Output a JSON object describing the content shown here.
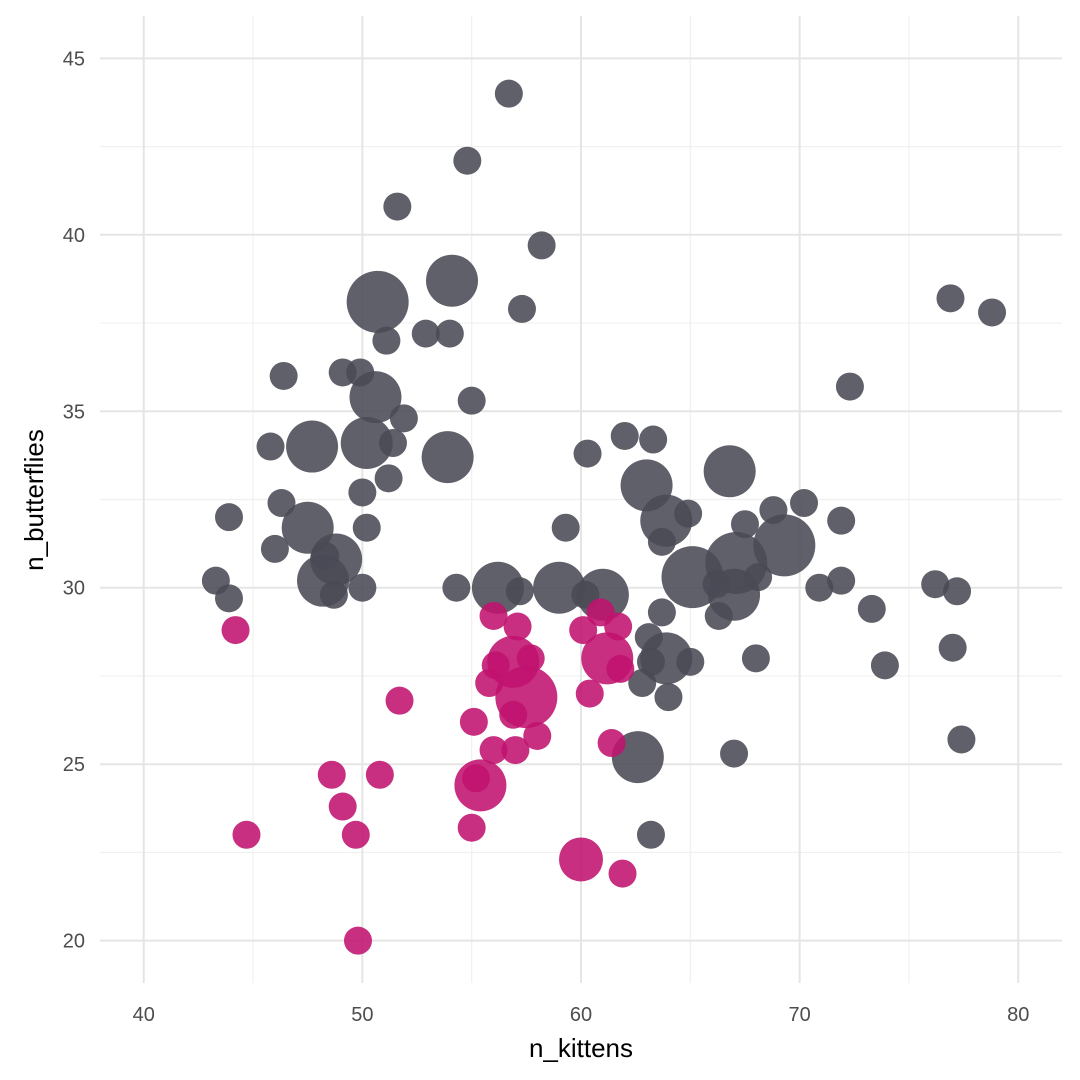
{
  "chart_data": {
    "type": "scatter",
    "title": "",
    "xlabel": "n_kittens",
    "ylabel": "n_butterflies",
    "xlim": [
      38,
      82
    ],
    "ylim": [
      18.8,
      46.2
    ],
    "x_ticks": [
      40,
      50,
      60,
      70,
      80
    ],
    "y_ticks": [
      20,
      25,
      30,
      35,
      40,
      45
    ],
    "grid": true,
    "legend": "none",
    "colors": {
      "gray": "#4a4a55",
      "magenta": "#c0126e"
    },
    "size_note": "point size encodes a third variable (relative units)",
    "series": [
      {
        "group": "gray",
        "points": [
          {
            "x": 56.7,
            "y": 44.0,
            "s": 1
          },
          {
            "x": 54.8,
            "y": 42.1,
            "s": 1
          },
          {
            "x": 51.6,
            "y": 40.8,
            "s": 1
          },
          {
            "x": 58.2,
            "y": 39.7,
            "s": 1
          },
          {
            "x": 54.1,
            "y": 38.7,
            "s": 3
          },
          {
            "x": 50.7,
            "y": 38.1,
            "s": 4
          },
          {
            "x": 57.3,
            "y": 37.9,
            "s": 1
          },
          {
            "x": 52.9,
            "y": 37.2,
            "s": 1
          },
          {
            "x": 54.0,
            "y": 37.2,
            "s": 1
          },
          {
            "x": 51.1,
            "y": 37.0,
            "s": 1
          },
          {
            "x": 49.1,
            "y": 36.1,
            "s": 1
          },
          {
            "x": 49.9,
            "y": 36.1,
            "s": 1
          },
          {
            "x": 46.4,
            "y": 36.0,
            "s": 1
          },
          {
            "x": 50.6,
            "y": 35.4,
            "s": 3
          },
          {
            "x": 55.0,
            "y": 35.3,
            "s": 1
          },
          {
            "x": 51.9,
            "y": 34.8,
            "s": 1
          },
          {
            "x": 45.8,
            "y": 34.0,
            "s": 1
          },
          {
            "x": 47.7,
            "y": 34.0,
            "s": 3
          },
          {
            "x": 50.2,
            "y": 34.1,
            "s": 3
          },
          {
            "x": 51.4,
            "y": 34.1,
            "s": 1
          },
          {
            "x": 53.9,
            "y": 33.7,
            "s": 3
          },
          {
            "x": 51.2,
            "y": 33.1,
            "s": 1
          },
          {
            "x": 50.0,
            "y": 32.7,
            "s": 1
          },
          {
            "x": 46.3,
            "y": 32.4,
            "s": 1
          },
          {
            "x": 43.9,
            "y": 32.0,
            "s": 1
          },
          {
            "x": 47.5,
            "y": 31.7,
            "s": 3
          },
          {
            "x": 50.2,
            "y": 31.7,
            "s": 1
          },
          {
            "x": 46.0,
            "y": 31.1,
            "s": 1
          },
          {
            "x": 48.8,
            "y": 30.8,
            "s": 3
          },
          {
            "x": 48.3,
            "y": 30.9,
            "s": 1
          },
          {
            "x": 48.2,
            "y": 30.2,
            "s": 3
          },
          {
            "x": 43.3,
            "y": 30.2,
            "s": 1
          },
          {
            "x": 50.0,
            "y": 30.0,
            "s": 1
          },
          {
            "x": 43.9,
            "y": 29.7,
            "s": 1
          },
          {
            "x": 48.7,
            "y": 29.8,
            "s": 1
          },
          {
            "x": 54.3,
            "y": 30.0,
            "s": 1
          },
          {
            "x": 56.2,
            "y": 30.0,
            "s": 3
          },
          {
            "x": 57.2,
            "y": 29.9,
            "s": 1
          },
          {
            "x": 59.0,
            "y": 30.0,
            "s": 3
          },
          {
            "x": 60.2,
            "y": 29.8,
            "s": 1
          },
          {
            "x": 61.0,
            "y": 29.8,
            "s": 3
          },
          {
            "x": 62.0,
            "y": 34.3,
            "s": 1
          },
          {
            "x": 63.3,
            "y": 34.2,
            "s": 1
          },
          {
            "x": 60.3,
            "y": 33.8,
            "s": 1
          },
          {
            "x": 66.8,
            "y": 33.3,
            "s": 3
          },
          {
            "x": 63.0,
            "y": 32.9,
            "s": 3
          },
          {
            "x": 64.9,
            "y": 32.1,
            "s": 1
          },
          {
            "x": 63.9,
            "y": 31.9,
            "s": 3
          },
          {
            "x": 59.3,
            "y": 31.7,
            "s": 1
          },
          {
            "x": 67.5,
            "y": 31.8,
            "s": 1
          },
          {
            "x": 68.8,
            "y": 32.2,
            "s": 1
          },
          {
            "x": 70.2,
            "y": 32.4,
            "s": 1
          },
          {
            "x": 71.9,
            "y": 31.9,
            "s": 1
          },
          {
            "x": 63.7,
            "y": 31.3,
            "s": 1
          },
          {
            "x": 69.3,
            "y": 31.2,
            "s": 4
          },
          {
            "x": 67.1,
            "y": 30.7,
            "s": 4
          },
          {
            "x": 65.1,
            "y": 30.3,
            "s": 4
          },
          {
            "x": 66.2,
            "y": 30.1,
            "s": 1
          },
          {
            "x": 68.1,
            "y": 30.3,
            "s": 1
          },
          {
            "x": 70.9,
            "y": 30.0,
            "s": 1
          },
          {
            "x": 71.9,
            "y": 30.2,
            "s": 1
          },
          {
            "x": 67.0,
            "y": 29.8,
            "s": 3
          },
          {
            "x": 76.2,
            "y": 30.1,
            "s": 1
          },
          {
            "x": 77.2,
            "y": 29.9,
            "s": 1
          },
          {
            "x": 63.7,
            "y": 29.3,
            "s": 1
          },
          {
            "x": 73.3,
            "y": 29.4,
            "s": 1
          },
          {
            "x": 66.3,
            "y": 29.2,
            "s": 1
          },
          {
            "x": 63.1,
            "y": 28.6,
            "s": 1
          },
          {
            "x": 63.9,
            "y": 28.0,
            "s": 3
          },
          {
            "x": 63.2,
            "y": 27.9,
            "s": 1
          },
          {
            "x": 65.0,
            "y": 27.9,
            "s": 1
          },
          {
            "x": 68.0,
            "y": 28.0,
            "s": 1
          },
          {
            "x": 73.9,
            "y": 27.8,
            "s": 1
          },
          {
            "x": 77.0,
            "y": 28.3,
            "s": 1
          },
          {
            "x": 62.8,
            "y": 27.3,
            "s": 1
          },
          {
            "x": 64.0,
            "y": 26.9,
            "s": 1
          },
          {
            "x": 62.6,
            "y": 25.2,
            "s": 3
          },
          {
            "x": 67.0,
            "y": 25.3,
            "s": 1
          },
          {
            "x": 77.4,
            "y": 25.7,
            "s": 1
          },
          {
            "x": 63.2,
            "y": 23.0,
            "s": 1
          },
          {
            "x": 72.3,
            "y": 35.7,
            "s": 1
          },
          {
            "x": 76.9,
            "y": 38.2,
            "s": 1
          },
          {
            "x": 78.8,
            "y": 37.8,
            "s": 1
          }
        ]
      },
      {
        "group": "magenta",
        "points": [
          {
            "x": 44.2,
            "y": 28.8,
            "s": 1
          },
          {
            "x": 51.7,
            "y": 26.8,
            "s": 1
          },
          {
            "x": 48.6,
            "y": 24.7,
            "s": 1
          },
          {
            "x": 50.8,
            "y": 24.7,
            "s": 1
          },
          {
            "x": 49.1,
            "y": 23.8,
            "s": 1
          },
          {
            "x": 44.7,
            "y": 23.0,
            "s": 1
          },
          {
            "x": 49.7,
            "y": 23.0,
            "s": 1
          },
          {
            "x": 49.8,
            "y": 20.0,
            "s": 1
          },
          {
            "x": 56.0,
            "y": 29.2,
            "s": 1
          },
          {
            "x": 56.9,
            "y": 27.9,
            "s": 3
          },
          {
            "x": 57.1,
            "y": 28.9,
            "s": 1
          },
          {
            "x": 56.1,
            "y": 27.8,
            "s": 1
          },
          {
            "x": 57.7,
            "y": 28.0,
            "s": 1
          },
          {
            "x": 55.8,
            "y": 27.3,
            "s": 1
          },
          {
            "x": 57.5,
            "y": 26.9,
            "s": 4
          },
          {
            "x": 56.9,
            "y": 26.4,
            "s": 1
          },
          {
            "x": 55.1,
            "y": 26.2,
            "s": 1
          },
          {
            "x": 58.0,
            "y": 25.8,
            "s": 1
          },
          {
            "x": 56.0,
            "y": 25.4,
            "s": 1
          },
          {
            "x": 57.0,
            "y": 25.4,
            "s": 1
          },
          {
            "x": 55.2,
            "y": 24.6,
            "s": 1
          },
          {
            "x": 55.4,
            "y": 24.4,
            "s": 3
          },
          {
            "x": 55.0,
            "y": 23.2,
            "s": 1
          },
          {
            "x": 60.1,
            "y": 28.8,
            "s": 1
          },
          {
            "x": 60.9,
            "y": 29.3,
            "s": 1
          },
          {
            "x": 61.7,
            "y": 28.9,
            "s": 1
          },
          {
            "x": 61.2,
            "y": 28.0,
            "s": 3
          },
          {
            "x": 61.8,
            "y": 27.7,
            "s": 1
          },
          {
            "x": 60.4,
            "y": 27.0,
            "s": 1
          },
          {
            "x": 61.4,
            "y": 25.6,
            "s": 1
          },
          {
            "x": 60.0,
            "y": 22.3,
            "s": 2
          },
          {
            "x": 61.9,
            "y": 21.9,
            "s": 1
          }
        ]
      }
    ]
  }
}
